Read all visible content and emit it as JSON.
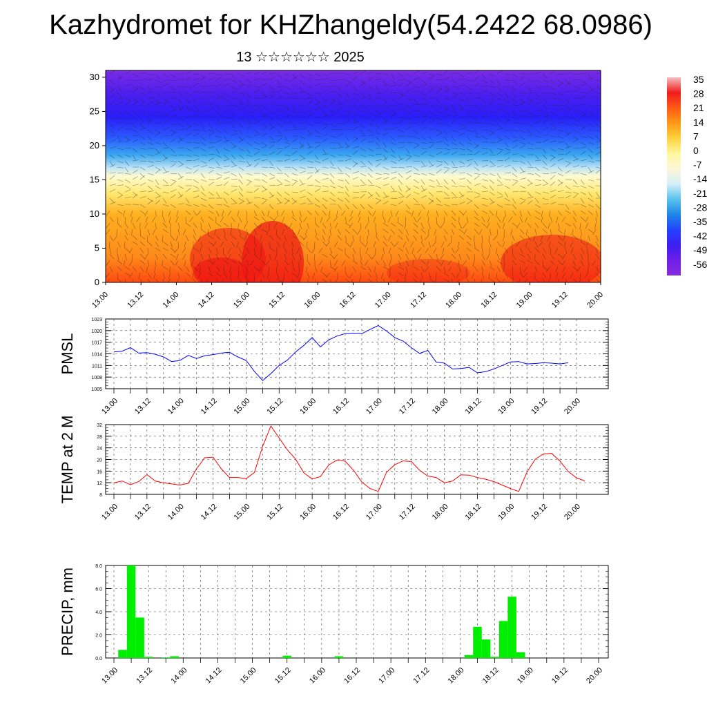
{
  "title": "Kazhydromet for KHZhangeldy(54.2422 68.0986)",
  "subtitle": "13 ☆☆☆☆☆☆ 2025",
  "time_labels": [
    "13.00",
    "13.12",
    "14.00",
    "14.12",
    "15.00",
    "15.12",
    "16.00",
    "16.12",
    "17.00",
    "17.12",
    "18.00",
    "18.12",
    "19.00",
    "19.12",
    "20.00"
  ],
  "chart_data": [
    {
      "id": "cross-section",
      "type": "heatmap",
      "description_ticks_only": true,
      "x_categories": [
        "13.00",
        "13.12",
        "14.00",
        "14.12",
        "15.00",
        "15.12",
        "16.00",
        "16.12",
        "17.00",
        "17.12",
        "18.00",
        "18.12",
        "19.00",
        "19.12",
        "20.00"
      ],
      "y_ticks": [
        0,
        5,
        10,
        15,
        20,
        25,
        30
      ],
      "ylim": [
        0,
        31
      ],
      "colorbar_labels": [
        "35",
        "28",
        "21",
        "14",
        "7",
        "0",
        "-7",
        "-14",
        "-21",
        "-28",
        "-35",
        "-42",
        "-49",
        "-56"
      ],
      "colorbar_colors": [
        "#f6c0c0",
        "#ee1c1c",
        "#ff5a14",
        "#ff9a18",
        "#ffd23c",
        "#fff7a0",
        "#fdf7d8",
        "#d6eef8",
        "#58c2ee",
        "#1e86e6",
        "#2442ff",
        "#3c1ef2",
        "#6e1ee8",
        "#8a2ce0"
      ]
    },
    {
      "id": "pmsl",
      "type": "line",
      "ylabel": "PMSL",
      "y_ticks": [
        1005,
        1008,
        1011,
        1014,
        1017,
        1020,
        1023
      ],
      "ylim": [
        1005,
        1023
      ],
      "color": "#0000ff",
      "x_step_hours": 3,
      "values": [
        1014.5,
        1014.7,
        1015.6,
        1014.2,
        1014.3,
        1013.9,
        1013.2,
        1012.0,
        1012.3,
        1013.6,
        1012.8,
        1013.5,
        1013.8,
        1014.2,
        1014.4,
        1013.2,
        1012.3,
        1009.5,
        1007.1,
        1008.9,
        1011.0,
        1012.4,
        1014.5,
        1016.2,
        1018.2,
        1015.8,
        1017.6,
        1018.6,
        1019.2,
        1019.3,
        1019.2,
        1020.3,
        1021.3,
        1019.9,
        1018.2,
        1017.3,
        1015.6,
        1014.1,
        1014.9,
        1011.9,
        1011.6,
        1010.1,
        1010.2,
        1010.5,
        1009.1,
        1009.4,
        1010.1,
        1011.0,
        1011.9,
        1012.0,
        1011.4,
        1011.5,
        1011.7,
        1011.6,
        1011.4,
        1011.7
      ]
    },
    {
      "id": "temp2m",
      "type": "line",
      "ylabel": "TEMP at 2 M",
      "y_ticks": [
        8,
        12,
        16,
        20,
        24,
        28,
        32
      ],
      "ylim": [
        8,
        32
      ],
      "color": "#ff0000",
      "x_step_hours": 3,
      "values": [
        12.0,
        12.6,
        11.3,
        12.4,
        14.8,
        12.6,
        12.0,
        11.6,
        11.2,
        11.8,
        16.8,
        20.6,
        20.8,
        16.8,
        13.8,
        13.8,
        13.4,
        15.5,
        24.5,
        31.5,
        27.4,
        23.3,
        20.1,
        15.4,
        13.3,
        14.1,
        18.1,
        19.8,
        19.4,
        16.3,
        12.3,
        10.0,
        9.0,
        15.6,
        18.2,
        19.5,
        19.3,
        16.3,
        14.3,
        13.8,
        12.0,
        12.6,
        14.7,
        14.6,
        13.8,
        13.2,
        12.4,
        11.2,
        10.0,
        9.0,
        15.6,
        20.1,
        21.9,
        22.1,
        19.4,
        15.9,
        13.7,
        12.6
      ]
    },
    {
      "id": "precip",
      "type": "bar",
      "ylabel": "PRECIP, mm",
      "y_ticks": [
        "0.0",
        "2.0",
        "4.0",
        "6.0",
        "8.0"
      ],
      "ylim": [
        0,
        8
      ],
      "color": "#00ee00",
      "x_step_hours": 3,
      "values": [
        0,
        0.7,
        8.0,
        3.5,
        0.1,
        0,
        0.05,
        0.15,
        0,
        0,
        0,
        0,
        0,
        0,
        0,
        0,
        0,
        0,
        0,
        0,
        0.2,
        0,
        0,
        0,
        0,
        0,
        0.15,
        0,
        0,
        0,
        0,
        0,
        0,
        0,
        0,
        0,
        0,
        0,
        0,
        0,
        0,
        0.25,
        2.7,
        1.6,
        0.1,
        3.2,
        5.3,
        0.5,
        0,
        0,
        0,
        0,
        0,
        0,
        0,
        0,
        0
      ]
    }
  ]
}
